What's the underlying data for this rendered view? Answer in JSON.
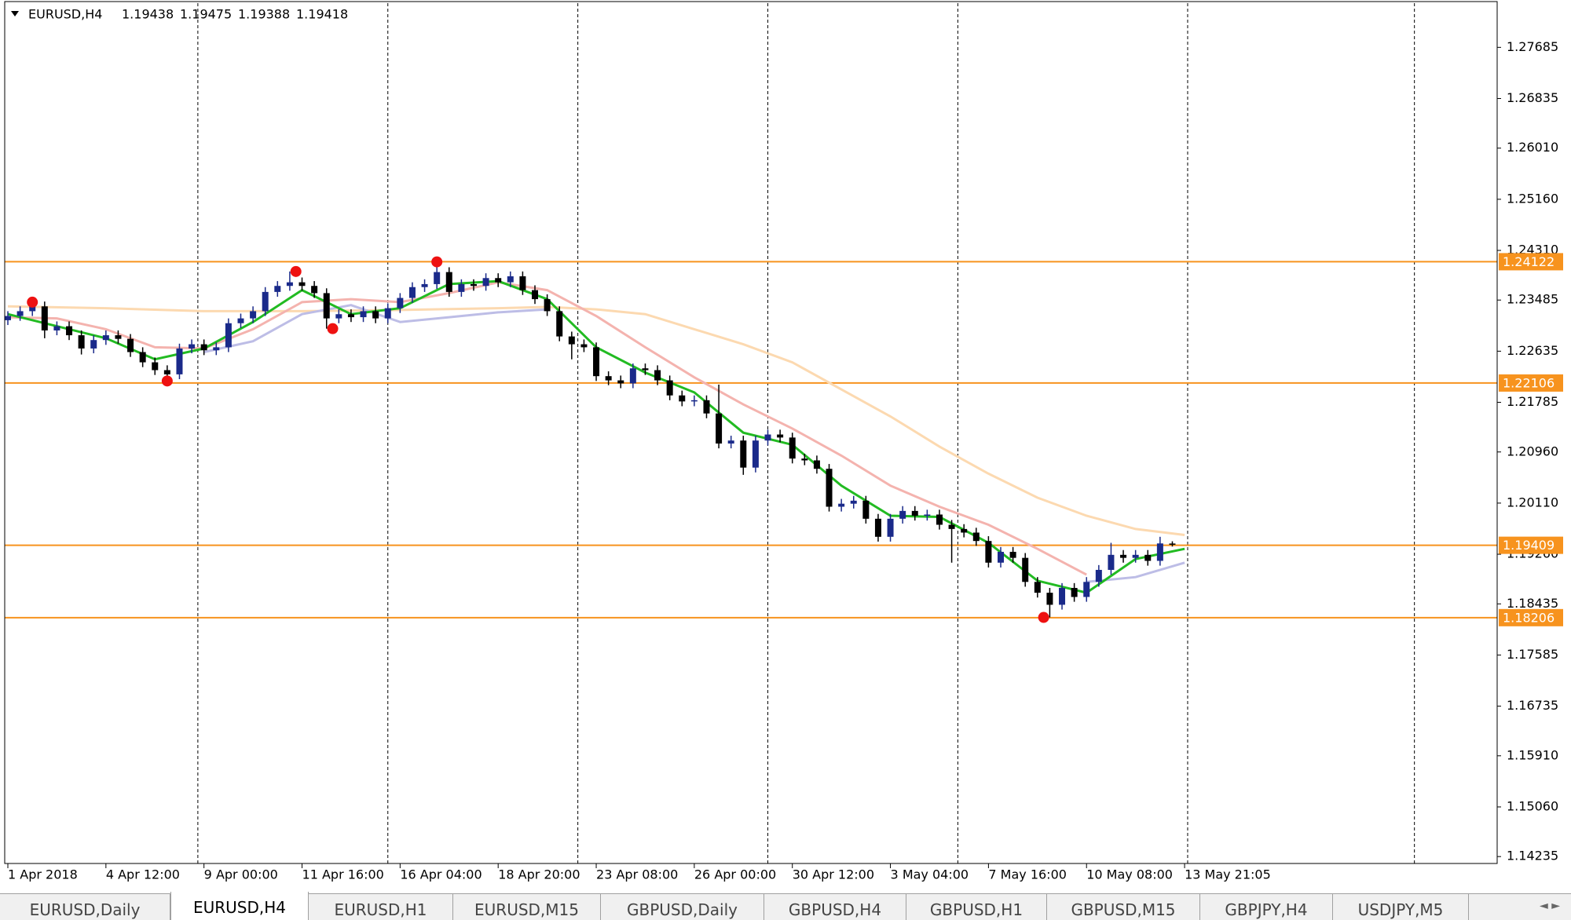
{
  "chart_data": {
    "type": "candlestick",
    "title": "EURUSD,H4",
    "candles": {
      "bull_color": "#1a2a8a",
      "bear_color": "#000000",
      "x": [
        0,
        2,
        4,
        6,
        8,
        10,
        12,
        14,
        16,
        18,
        20,
        22,
        24,
        26,
        28,
        30,
        32,
        34,
        36,
        38,
        40,
        42,
        44,
        46,
        48,
        50,
        52,
        54,
        56,
        58,
        60,
        62,
        64,
        66,
        68,
        70,
        72,
        74,
        76,
        78,
        80,
        82,
        84,
        86,
        88,
        90,
        92,
        94,
        96,
        98,
        100,
        102,
        104,
        106,
        108,
        110,
        112,
        114,
        116,
        118,
        120,
        122,
        124,
        126,
        128,
        130,
        132,
        134,
        136,
        138,
        140,
        142,
        144,
        146,
        148,
        150,
        152,
        154,
        156,
        158,
        160,
        162,
        164,
        166,
        168,
        170,
        172,
        174,
        176,
        178,
        180,
        182,
        184,
        186,
        188,
        190
      ],
      "open": [
        1.2315,
        1.2322,
        1.233,
        1.2338,
        1.2298,
        1.2305,
        1.229,
        1.2268,
        1.2282,
        1.229,
        1.2284,
        1.2262,
        1.2245,
        1.2232,
        1.2225,
        1.2268,
        1.2275,
        1.2265,
        1.227,
        1.231,
        1.2318,
        1.233,
        1.2362,
        1.2372,
        1.2378,
        1.2372,
        1.236,
        1.2318,
        1.2325,
        1.232,
        1.233,
        1.2318,
        1.2335,
        1.2352,
        1.237,
        1.2375,
        1.2395,
        1.2362,
        1.2375,
        1.2372,
        1.2385,
        1.2378,
        1.2388,
        1.2365,
        1.235,
        1.233,
        1.2288,
        1.2275,
        1.227,
        1.2222,
        1.2215,
        1.221,
        1.2235,
        1.2232,
        1.2215,
        1.219,
        1.218,
        1.2182,
        1.216,
        1.211,
        1.2115,
        1.207,
        1.2115,
        1.2125,
        1.212,
        1.2085,
        1.2082,
        1.2068,
        1.2005,
        1.201,
        1.2015,
        1.1985,
        1.1955,
        1.1985,
        1.1998,
        1.199,
        1.1992,
        1.1975,
        1.1968,
        1.1962,
        1.1948,
        1.1912,
        1.193,
        1.192,
        1.188,
        1.1862,
        1.1842,
        1.187,
        1.1855,
        1.188,
        1.19,
        1.1925,
        1.192,
        1.1925,
        1.1915,
        1.19438
      ],
      "high": [
        1.233,
        1.2338,
        1.2345,
        1.2346,
        1.2313,
        1.2313,
        1.2298,
        1.229,
        1.2298,
        1.2298,
        1.2292,
        1.227,
        1.2253,
        1.224,
        1.2276,
        1.2283,
        1.2283,
        1.2278,
        1.2318,
        1.2326,
        1.2338,
        1.237,
        1.238,
        1.2396,
        1.2386,
        1.238,
        1.2368,
        1.2333,
        1.2333,
        1.2338,
        1.2338,
        1.2343,
        1.236,
        1.2378,
        1.2383,
        1.2412,
        1.2403,
        1.2383,
        1.2383,
        1.2393,
        1.2393,
        1.2396,
        1.2396,
        1.2373,
        1.2358,
        1.2338,
        1.2296,
        1.2283,
        1.2278,
        1.223,
        1.2223,
        1.2243,
        1.2243,
        1.224,
        1.2223,
        1.2198,
        1.219,
        1.219,
        1.2208,
        1.2123,
        1.2123,
        1.2123,
        1.2133,
        1.2133,
        1.2128,
        1.2093,
        1.209,
        1.2076,
        1.2018,
        1.2023,
        1.2023,
        1.1993,
        1.1993,
        1.2006,
        1.2006,
        1.2,
        1.2,
        1.1983,
        1.1976,
        1.197,
        1.1956,
        1.1938,
        1.1938,
        1.1928,
        1.1888,
        1.187,
        1.1878,
        1.1878,
        1.1888,
        1.1908,
        1.1945,
        1.1933,
        1.1933,
        1.1933,
        1.1955,
        1.19475
      ],
      "low": [
        1.2307,
        1.2314,
        1.2322,
        1.2285,
        1.229,
        1.2282,
        1.2258,
        1.226,
        1.2274,
        1.2276,
        1.2254,
        1.2237,
        1.2224,
        1.2214,
        1.2217,
        1.226,
        1.2257,
        1.2257,
        1.2262,
        1.2302,
        1.231,
        1.2322,
        1.2354,
        1.2364,
        1.2364,
        1.2352,
        1.2301,
        1.231,
        1.2312,
        1.2312,
        1.231,
        1.231,
        1.2327,
        1.2344,
        1.2362,
        1.2367,
        1.2354,
        1.2354,
        1.2364,
        1.2364,
        1.237,
        1.237,
        1.2357,
        1.2342,
        1.2322,
        1.228,
        1.225,
        1.2262,
        1.2214,
        1.2207,
        1.2202,
        1.2202,
        1.2224,
        1.2207,
        1.2182,
        1.2172,
        1.2172,
        1.2152,
        1.2102,
        1.2102,
        1.2058,
        1.2062,
        1.2107,
        1.2112,
        1.2077,
        1.2074,
        1.206,
        1.1997,
        1.1997,
        1.2002,
        1.1977,
        1.1947,
        1.1947,
        1.1977,
        1.1982,
        1.1982,
        1.1967,
        1.1912,
        1.1954,
        1.194,
        1.1904,
        1.1904,
        1.1912,
        1.1872,
        1.1854,
        1.1821,
        1.1834,
        1.1847,
        1.1847,
        1.1872,
        1.1892,
        1.1912,
        1.1912,
        1.1907,
        1.1907,
        1.19388
      ],
      "close": [
        1.2322,
        1.233,
        1.2338,
        1.2298,
        1.2305,
        1.229,
        1.2268,
        1.2282,
        1.229,
        1.2284,
        1.2262,
        1.2245,
        1.2232,
        1.2225,
        1.2268,
        1.2275,
        1.2265,
        1.227,
        1.231,
        1.2318,
        1.233,
        1.2362,
        1.2372,
        1.2378,
        1.2372,
        1.236,
        1.2318,
        1.2325,
        1.232,
        1.233,
        1.2318,
        1.2335,
        1.2352,
        1.237,
        1.2375,
        1.2395,
        1.2362,
        1.2375,
        1.2372,
        1.2385,
        1.2378,
        1.2388,
        1.2365,
        1.235,
        1.233,
        1.2288,
        1.2275,
        1.227,
        1.2222,
        1.2215,
        1.221,
        1.2235,
        1.2232,
        1.2215,
        1.219,
        1.218,
        1.2182,
        1.216,
        1.211,
        1.2115,
        1.207,
        1.2115,
        1.2125,
        1.212,
        1.2085,
        1.2082,
        1.2068,
        1.2005,
        1.201,
        1.2015,
        1.1985,
        1.1955,
        1.1985,
        1.1998,
        1.199,
        1.1992,
        1.1975,
        1.1968,
        1.1962,
        1.1948,
        1.1912,
        1.193,
        1.192,
        1.188,
        1.1862,
        1.1842,
        1.187,
        1.1855,
        1.188,
        1.19,
        1.1925,
        1.192,
        1.1925,
        1.1915,
        1.1944,
        1.19418
      ]
    },
    "series": [
      {
        "color": "#fcd9b0",
        "x": [
          0,
          16,
          32,
          48,
          64,
          80,
          88,
          96,
          104,
          112,
          120,
          128,
          136,
          144,
          152,
          160,
          168,
          176,
          184,
          192
        ],
        "values": [
          1.2338,
          1.2335,
          1.233,
          1.233,
          1.2332,
          1.2335,
          1.2337,
          1.2333,
          1.2325,
          1.23,
          1.2275,
          1.2245,
          1.22,
          1.2155,
          1.2105,
          1.206,
          1.202,
          1.199,
          1.1968,
          1.1958
        ]
      },
      {
        "color": "#bdbde6",
        "x": [
          32,
          40,
          48,
          56,
          64,
          72,
          80,
          88,
          96,
          176,
          184,
          192
        ],
        "values": [
          1.2262,
          1.228,
          1.2325,
          1.234,
          1.2312,
          1.232,
          1.2328,
          1.2333,
          null,
          1.188,
          1.1888,
          1.1912
        ]
      },
      {
        "color": "#f4b3ae",
        "x": [
          0,
          8,
          16,
          24,
          32,
          40,
          48,
          56,
          64,
          72,
          80,
          88,
          96,
          104,
          112,
          120,
          128,
          136,
          144,
          152,
          160,
          168,
          176
        ],
        "values": [
          1.232,
          1.2318,
          1.23,
          1.227,
          1.2268,
          1.23,
          1.2345,
          1.235,
          1.2345,
          1.236,
          1.2378,
          1.2365,
          1.2322,
          1.227,
          1.222,
          1.2175,
          1.2135,
          1.209,
          1.204,
          1.2005,
          1.1975,
          1.1935,
          1.1892
        ]
      },
      {
        "color": "#22bb22",
        "x": [
          0,
          8,
          16,
          24,
          32,
          40,
          48,
          56,
          64,
          72,
          80,
          88,
          96,
          104,
          112,
          120,
          128,
          136,
          144,
          152,
          160,
          168,
          176,
          184,
          192
        ],
        "values": [
          1.2325,
          1.2305,
          1.2285,
          1.225,
          1.2268,
          1.2312,
          1.2365,
          1.2325,
          1.2335,
          1.2375,
          1.238,
          1.235,
          1.227,
          1.2228,
          1.2195,
          1.2128,
          1.2108,
          1.204,
          1.199,
          1.1988,
          1.1945,
          1.1882,
          1.1862,
          1.1918,
          1.1935
        ]
      }
    ],
    "fractals": {
      "color": "#ee1111",
      "x": [
        4,
        26,
        47,
        53,
        70,
        169
      ],
      "values": [
        1.2345,
        1.2214,
        1.2396,
        1.2301,
        1.2412,
        1.1821
      ]
    },
    "levels": {
      "color": "#f7931e",
      "values": [
        1.24122,
        1.22106,
        1.19409,
        1.18206
      ]
    },
    "separators": [
      31,
      62,
      93,
      124,
      155,
      192.5,
      229.5
    ],
    "xlim": [
      0,
      243
    ],
    "ylim": [
      1.1412,
      1.2842
    ],
    "yticks": [
      1.27685,
      1.26835,
      {
        "value": 1.2601,
        "label": "1.26010"
      },
      {
        "value": 1.2516,
        "label": "1.25160"
      },
      {
        "value": 1.2431,
        "label": "1.24310"
      },
      1.23485,
      1.22635,
      1.21785,
      {
        "value": 1.2096,
        "label": "1.20960"
      },
      {
        "value": 1.2011,
        "label": "1.20110"
      },
      {
        "value": 1.1926,
        "label": "1.19260"
      },
      1.18435,
      1.17585,
      1.16735,
      {
        "value": 1.1591,
        "label": "1.15910"
      },
      {
        "value": 1.1506,
        "label": "1.15060"
      },
      1.14235
    ],
    "xticks": [
      {
        "value": 0,
        "label": "1 Apr 2018"
      },
      {
        "value": 16,
        "label": "4 Apr 12:00"
      },
      {
        "value": 32,
        "label": "9 Apr 00:00"
      },
      {
        "value": 48,
        "label": "11 Apr 16:00"
      },
      {
        "value": 64,
        "label": "16 Apr 04:00"
      },
      {
        "value": 80,
        "label": "18 Apr 20:00"
      },
      {
        "value": 96,
        "label": "23 Apr 08:00"
      },
      {
        "value": 112,
        "label": "26 Apr 00:00"
      },
      {
        "value": 128,
        "label": "30 Apr 12:00"
      },
      {
        "value": 144,
        "label": "3 May 04:00"
      },
      {
        "value": 160,
        "label": "7 May 16:00"
      },
      {
        "value": 176,
        "label": "10 May 08:00"
      },
      {
        "value": 192,
        "label": "13 May 21:05"
      }
    ]
  },
  "tabs": {
    "items": [
      "EURUSD,Daily",
      "EURUSD,H4",
      "EURUSD,H1",
      "EURUSD,M15",
      "GBPUSD,Daily",
      "GBPUSD,H4",
      "GBPUSD,H1",
      "GBPUSD,M15",
      "GBPJPY,H4",
      "USDJPY,M5"
    ],
    "active": 1
  }
}
